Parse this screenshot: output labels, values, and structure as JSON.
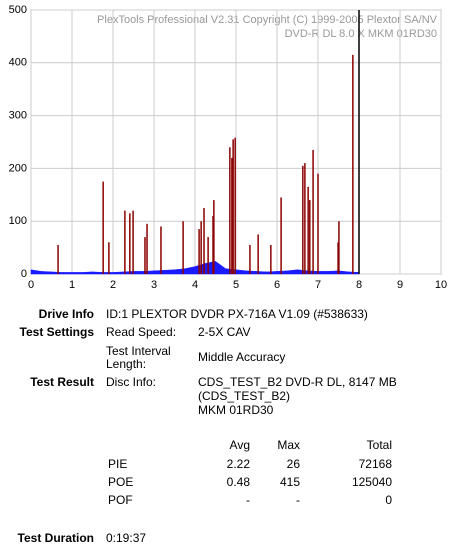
{
  "chart_data": {
    "type": "line",
    "watermark": [
      "PlexTools Professional V2.31 Copyright (C) 1999-2005 Plextor SA/NV",
      "DVD-R DL   8.0 X   MKM 01RD30"
    ],
    "xlim": [
      0,
      10
    ],
    "xticks": [
      0,
      1,
      2,
      3,
      4,
      5,
      6,
      7,
      8,
      9,
      10
    ],
    "ylim": [
      0,
      500
    ],
    "yticks": [
      0,
      100,
      200,
      300,
      400,
      500
    ],
    "grid": true,
    "marker_x": 8,
    "series": [
      {
        "name": "PIE",
        "style": "area",
        "color": "#1a1aff",
        "x": [
          0,
          0.25,
          0.5,
          0.75,
          1,
          1.25,
          1.5,
          1.75,
          2,
          2.25,
          2.5,
          2.75,
          3,
          3.25,
          3.5,
          3.75,
          4,
          4.25,
          4.5,
          4.75,
          5,
          5.25,
          5.5,
          5.75,
          6,
          6.25,
          6.5,
          6.75,
          7,
          7.25,
          7.5,
          7.75,
          8
        ],
        "values": [
          8,
          5,
          4,
          3,
          3,
          3,
          4,
          3,
          3,
          4,
          5,
          5,
          6,
          7,
          8,
          10,
          14,
          20,
          24,
          10,
          8,
          6,
          5,
          4,
          5,
          6,
          8,
          6,
          5,
          5,
          6,
          4,
          3
        ]
      },
      {
        "name": "POE",
        "style": "spike",
        "color": "#8b0000",
        "x": [
          0.66,
          1.76,
          1.9,
          2.29,
          2.41,
          2.49,
          2.78,
          2.83,
          3.17,
          3.71,
          4.1,
          4.15,
          4.22,
          4.32,
          4.44,
          4.46,
          4.85,
          4.9,
          4.93,
          4.98,
          5.34,
          5.54,
          5.85,
          6.1,
          6.63,
          6.68,
          6.76,
          6.8,
          6.88,
          7.0,
          7.49,
          7.51,
          7.85
        ],
        "values": [
          55,
          175,
          60,
          120,
          115,
          120,
          70,
          95,
          90,
          100,
          85,
          100,
          125,
          70,
          110,
          140,
          240,
          220,
          255,
          258,
          55,
          75,
          55,
          145,
          205,
          210,
          165,
          140,
          235,
          190,
          60,
          100,
          415
        ]
      }
    ]
  },
  "info": {
    "drive_label": "Drive Info",
    "drive": "ID:1 PLEXTOR DVDR PX-716A V1.09 (#538633)",
    "settings_label": "Test Settings",
    "settings": [
      [
        "Read Speed:",
        "2-5X CAV"
      ],
      [
        "Test Interval Length:",
        "Middle Accuracy"
      ]
    ],
    "result_label": "Test Result",
    "disc_label": "Disc Info:",
    "disc": [
      "CDS_TEST_B2 DVD-R DL, 8147 MB",
      "(CDS_TEST_B2)",
      "MKM 01RD30"
    ],
    "stats_header": [
      "Avg",
      "Max",
      "Total"
    ],
    "stats": [
      [
        "PIE",
        "2.22",
        "26",
        "72168"
      ],
      [
        "POE",
        "0.48",
        "415",
        "125040"
      ],
      [
        "POF",
        "-",
        "-",
        "0"
      ]
    ],
    "duration_label": "Test Duration",
    "duration": "0:19:37"
  }
}
